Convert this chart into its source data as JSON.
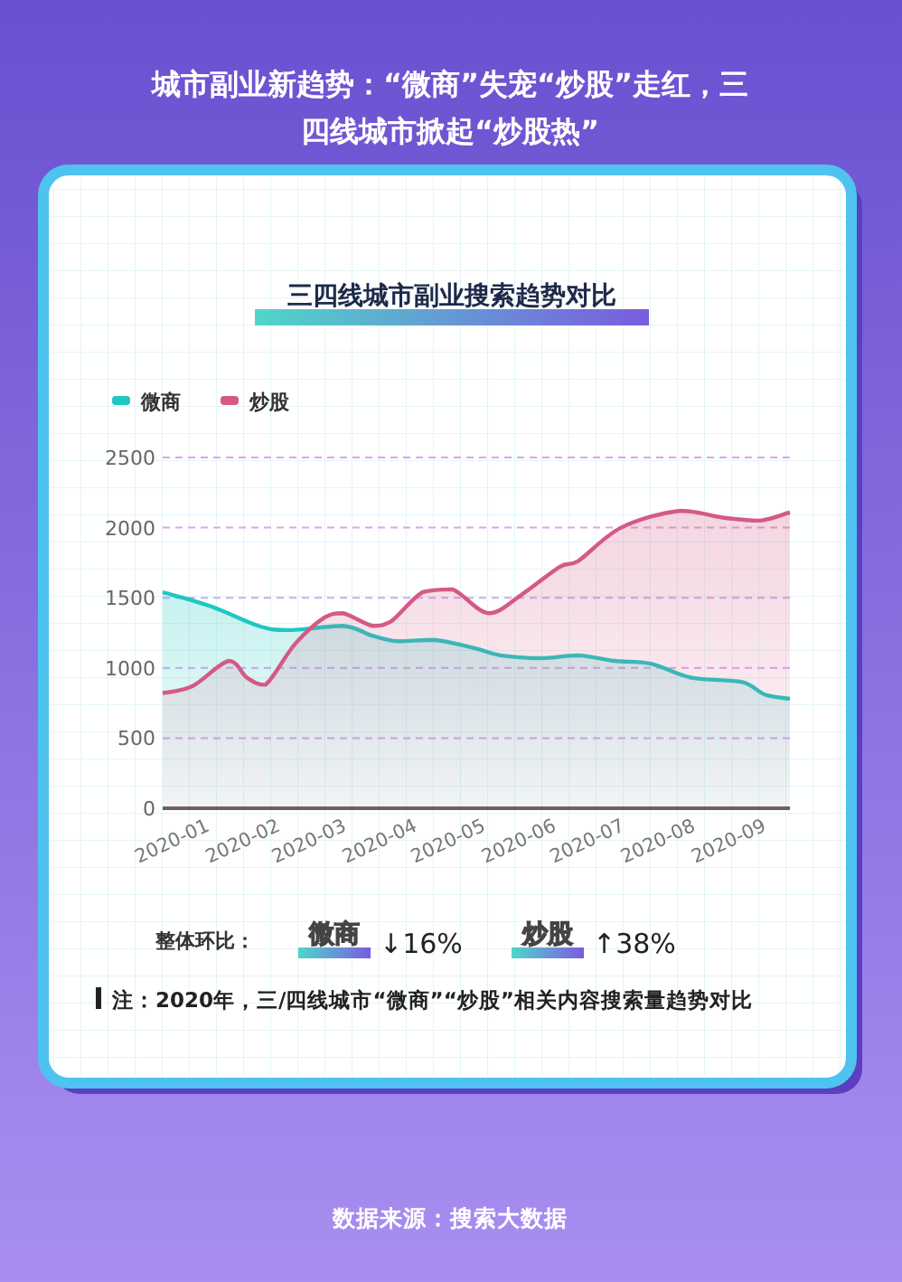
{
  "chart_data": {
    "type": "area",
    "title": "城市副业新趋势：“微商”失宠“炒股”走红，三四线城市掀起“炒股热”",
    "subtitle": "三四线城市副业搜索趋势对比",
    "series": [
      {
        "name": "微商",
        "color": "#1ec8c0",
        "x": [
          "2019-12-11",
          "2020-01-01",
          "2020-01-22",
          "2020-02-04",
          "2020-02-28",
          "2020-03-12",
          "2020-03-23",
          "2020-04-08",
          "2020-04-26",
          "2020-05-07",
          "2020-05-25",
          "2020-06-10",
          "2020-06-26",
          "2020-07-12",
          "2020-07-30",
          "2020-08-21",
          "2020-08-31",
          "2020-09-11"
        ],
        "values": [
          1540,
          1440,
          1300,
          1270,
          1300,
          1230,
          1190,
          1200,
          1140,
          1090,
          1070,
          1090,
          1050,
          1030,
          930,
          900,
          810,
          780
        ]
      },
      {
        "name": "炒股",
        "color": "#d45a85",
        "x": [
          "2019-12-11",
          "2019-12-24",
          "2020-01-09",
          "2020-01-17",
          "2020-01-25",
          "2020-02-07",
          "2020-02-20",
          "2020-02-28",
          "2020-03-12",
          "2020-03-20",
          "2020-04-03",
          "2020-04-16",
          "2020-05-02",
          "2020-05-17",
          "2020-06-02",
          "2020-06-10",
          "2020-06-29",
          "2020-07-25",
          "2020-08-13",
          "2020-08-29",
          "2020-09-11"
        ],
        "values": [
          820,
          870,
          1050,
          930,
          880,
          1170,
          1360,
          1390,
          1300,
          1330,
          1540,
          1560,
          1390,
          1530,
          1720,
          1760,
          2000,
          2120,
          2070,
          2050,
          2110
        ]
      }
    ],
    "xlim": [
      "2019-12-11",
      "2020-09-11"
    ],
    "xticks": [
      {
        "value": "2020-01-01",
        "label": "2020-01"
      },
      {
        "value": "2020-02-01",
        "label": "2020-02"
      },
      {
        "value": "2020-03-01",
        "label": "2020-03"
      },
      {
        "value": "2020-04-01",
        "label": "2020-04"
      },
      {
        "value": "2020-05-01",
        "label": "2020-05"
      },
      {
        "value": "2020-06-01",
        "label": "2020-06"
      },
      {
        "value": "2020-07-01",
        "label": "2020-07"
      },
      {
        "value": "2020-08-01",
        "label": "2020-08"
      },
      {
        "value": "2020-09-01",
        "label": "2020-09"
      }
    ],
    "ylim": [
      0,
      2500
    ],
    "yticks": [
      0,
      500,
      1000,
      1500,
      2000,
      2500
    ],
    "grid": "y",
    "legend": "top left",
    "marker": "none",
    "line_style": "solid",
    "annotations": [
      "整体环比：",
      "微商",
      "↓16%",
      "炒股",
      "↑38%",
      "注：2020年，三/四线城市“微商”“炒股”相关内容搜索量趋势对比",
      "数据来源：搜索大数据"
    ]
  }
}
